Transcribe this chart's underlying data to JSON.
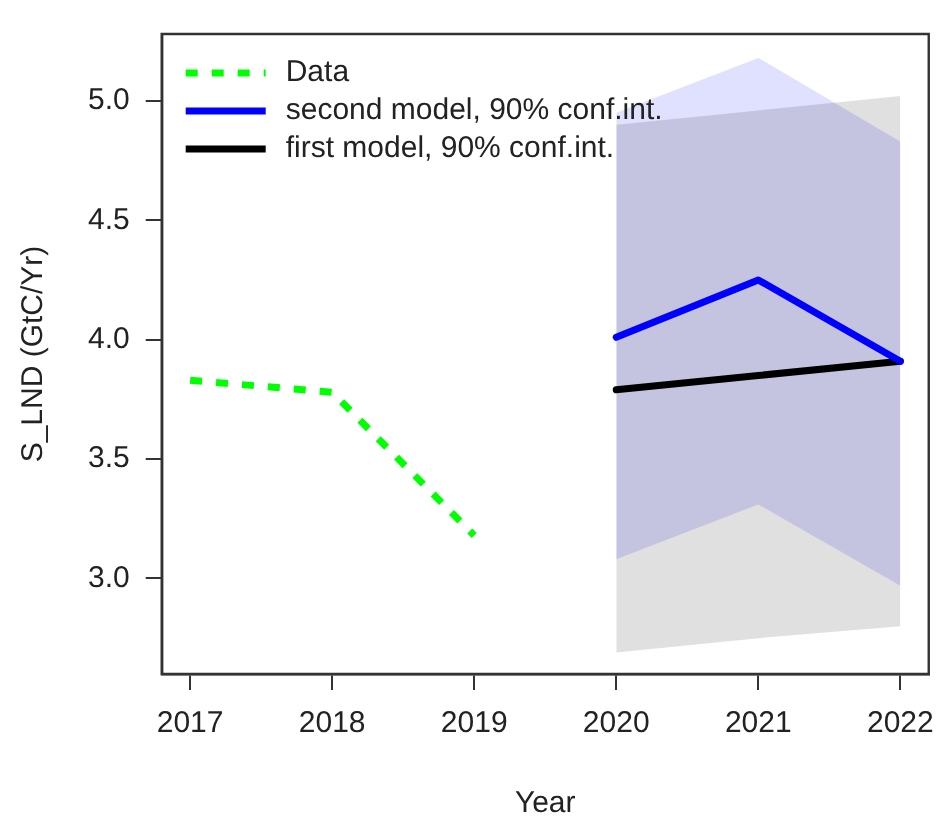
{
  "chart_data": {
    "type": "line",
    "xlabel": "Year",
    "ylabel": "S_LND (GtC/Yr)",
    "xlim": [
      2016.8,
      2022.2
    ],
    "xticks": [
      2017,
      2018,
      2019,
      2020,
      2021,
      2022
    ],
    "ylim": [
      2.6,
      5.28
    ],
    "yticks": [
      {
        "value": 3,
        "label": "3.0"
      },
      {
        "value": 3.5,
        "label": "3.5"
      },
      {
        "value": 4,
        "label": "4.0"
      },
      {
        "value": 4.5,
        "label": "4.5"
      },
      {
        "value": 5,
        "label": "5.0"
      }
    ],
    "legend": "top left",
    "grid": false,
    "series": [
      {
        "name": "Data",
        "color": "#00ff00",
        "line_style": "dashed",
        "x": [
          2017,
          2018,
          2019
        ],
        "values": [
          3.83,
          3.78,
          3.18
        ]
      },
      {
        "name": "second model, 90% conf.int.",
        "color": "#0000ff",
        "line_style": "solid",
        "x": [
          2020,
          2021,
          2022
        ],
        "values": [
          4.01,
          4.25,
          3.91
        ],
        "lower": [
          3.08,
          3.31,
          2.97
        ],
        "upper": [
          4.95,
          5.18,
          4.83
        ]
      },
      {
        "name": "first model, 90% conf.int.",
        "color": "#000000",
        "line_style": "solid",
        "x": [
          2020,
          2021,
          2022
        ],
        "values": [
          3.79,
          3.85,
          3.91
        ],
        "lower": [
          2.69,
          2.75,
          2.8
        ],
        "upper": [
          4.9,
          4.96,
          5.02
        ]
      }
    ]
  }
}
